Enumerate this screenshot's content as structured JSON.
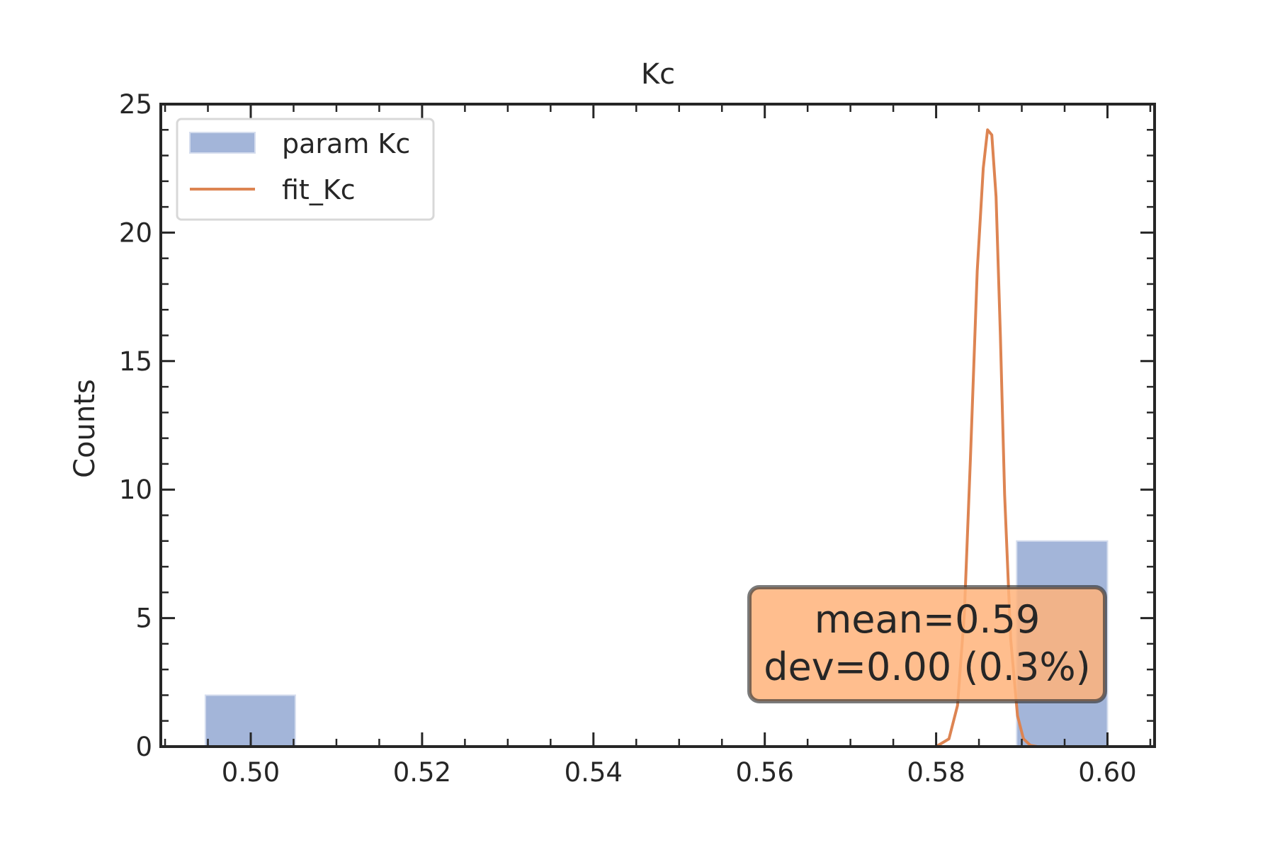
{
  "chart_data": {
    "type": "bar",
    "title": "Kc",
    "xlabel": "",
    "ylabel": "Counts",
    "xlim": [
      0.4895,
      0.6055
    ],
    "ylim": [
      0,
      25
    ],
    "xticks": [
      "0.50",
      "0.52",
      "0.54",
      "0.56",
      "0.58",
      "0.60"
    ],
    "yticks": [
      "0",
      "5",
      "10",
      "15",
      "20",
      "25"
    ],
    "grid": false,
    "legend_position": "top-left",
    "series": [
      {
        "name": "param Kc",
        "kind": "histogram",
        "color": "#a3b5d9",
        "bins": [
          {
            "x0": 0.4947,
            "x1": 0.5052,
            "count": 2
          },
          {
            "x0": 0.5894,
            "x1": 0.6,
            "count": 8
          }
        ]
      },
      {
        "name": "fit_Kc",
        "kind": "line",
        "color": "#dd8452",
        "x": [
          0.4947,
          0.58,
          0.5815,
          0.5825,
          0.5833,
          0.584,
          0.5848,
          0.5855,
          0.586,
          0.5865,
          0.587,
          0.5875,
          0.588,
          0.5887,
          0.5895,
          0.5902,
          0.591,
          0.5918,
          0.5928,
          0.6
        ],
        "y": [
          0,
          0,
          0.3,
          1.6,
          5.2,
          11.2,
          18.5,
          22.5,
          24.0,
          23.8,
          21.4,
          16.0,
          9.8,
          4.2,
          1.2,
          0.3,
          0.05,
          0,
          0,
          0
        ]
      }
    ],
    "annotation": {
      "line1": "mean=0.59",
      "line2": "dev=0.00 (0.3%)",
      "color": "#ffb37a"
    }
  }
}
